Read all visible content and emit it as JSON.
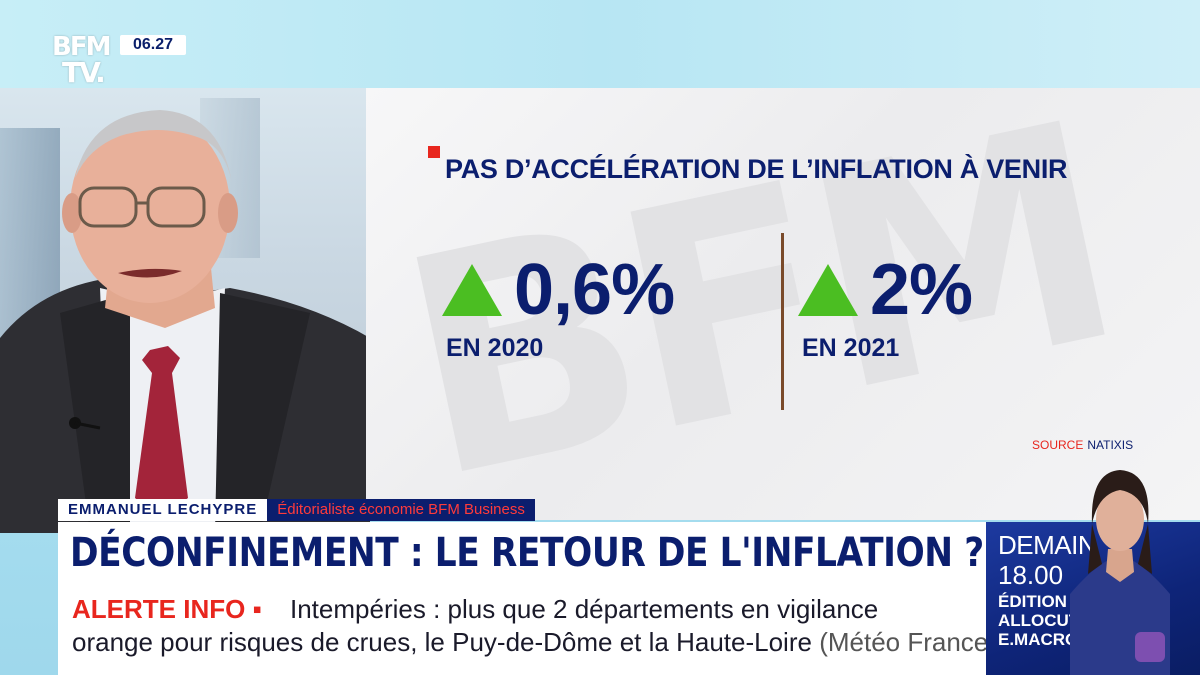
{
  "channel": {
    "logo_line1": "BFM",
    "logo_line2": "TV.",
    "clock": "06.27"
  },
  "infographic": {
    "title": "PAS D’ACCÉLÉRATION DE L’INFLATION À VENIR",
    "stats": [
      {
        "value": "0,6%",
        "label": "EN 2020",
        "trend": "up-triangle-icon"
      },
      {
        "value": "2%",
        "label": "EN 2021",
        "trend": "up-triangle-icon"
      }
    ],
    "source_label": "SOURCE",
    "source_value": "NATIXIS",
    "watermark": "BFM"
  },
  "lower_third": {
    "name": "EMMANUEL LECHYPRE",
    "role": "Éditorialiste économie BFM Business",
    "headline": "DÉCONFINEMENT : LE RETOUR DE L'INFLATION ?"
  },
  "ticker": {
    "alert_label": "ALERTE INFO ▪",
    "line1": "Intempéries : plus que 2 départements en vigilance",
    "line2": "orange pour risques de crues, le Puy-de-Dôme et la Haute-Loire",
    "source": "(Météo France)"
  },
  "promo": {
    "day": "DEMAIN",
    "time": "18.00",
    "line1": "ÉDITION SPÉCIALE",
    "line2": "ALLOCUTION",
    "line3": "E.MACRON"
  },
  "colors": {
    "navy": "#0b1e6e",
    "accent_red": "#e8261e",
    "trend_green": "#4bbe22",
    "divider_brown": "#7a4a2a"
  }
}
